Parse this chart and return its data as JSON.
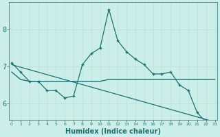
{
  "xlabel": "Humidex (Indice chaleur)",
  "x_values": [
    0,
    1,
    2,
    3,
    4,
    5,
    6,
    7,
    8,
    9,
    10,
    11,
    12,
    13,
    14,
    15,
    16,
    17,
    18,
    19,
    20,
    21,
    22,
    23
  ],
  "line1_y": [
    7.1,
    6.85,
    6.6,
    6.6,
    6.35,
    6.35,
    6.15,
    6.2,
    7.05,
    7.35,
    7.5,
    8.55,
    7.7,
    7.4,
    7.2,
    7.05,
    6.8,
    6.8,
    6.85,
    6.5,
    6.35,
    5.75,
    5.5,
    null
  ],
  "line2_y": [
    null,
    null,
    6.6,
    6.6,
    null,
    null,
    null,
    null,
    null,
    null,
    null,
    null,
    null,
    null,
    null,
    null,
    null,
    null,
    null,
    null,
    null,
    null,
    null,
    null
  ],
  "line3_y": [
    6.85,
    6.65,
    6.6,
    6.6,
    6.6,
    6.6,
    6.6,
    6.6,
    6.6,
    6.6,
    6.6,
    6.65,
    6.65,
    6.65,
    6.65,
    6.65,
    6.65,
    6.65,
    6.65,
    6.65,
    6.65,
    6.65,
    6.65,
    6.65
  ],
  "line4_y": [
    7.05,
    null,
    null,
    null,
    null,
    null,
    null,
    null,
    null,
    null,
    null,
    null,
    null,
    null,
    null,
    null,
    null,
    null,
    null,
    null,
    null,
    null,
    null,
    5.5
  ],
  "bg_color": "#cceee8",
  "line_color": "#1a7070",
  "grid_color_v": "#bbdddd",
  "grid_color_h": "#ccdddd",
  "ylim_min": 5.55,
  "ylim_max": 8.75,
  "yticks": [
    6,
    7,
    8
  ],
  "xticks": [
    0,
    1,
    2,
    3,
    4,
    5,
    6,
    7,
    8,
    9,
    10,
    11,
    12,
    13,
    14,
    15,
    16,
    17,
    18,
    19,
    20,
    21,
    22,
    23
  ]
}
